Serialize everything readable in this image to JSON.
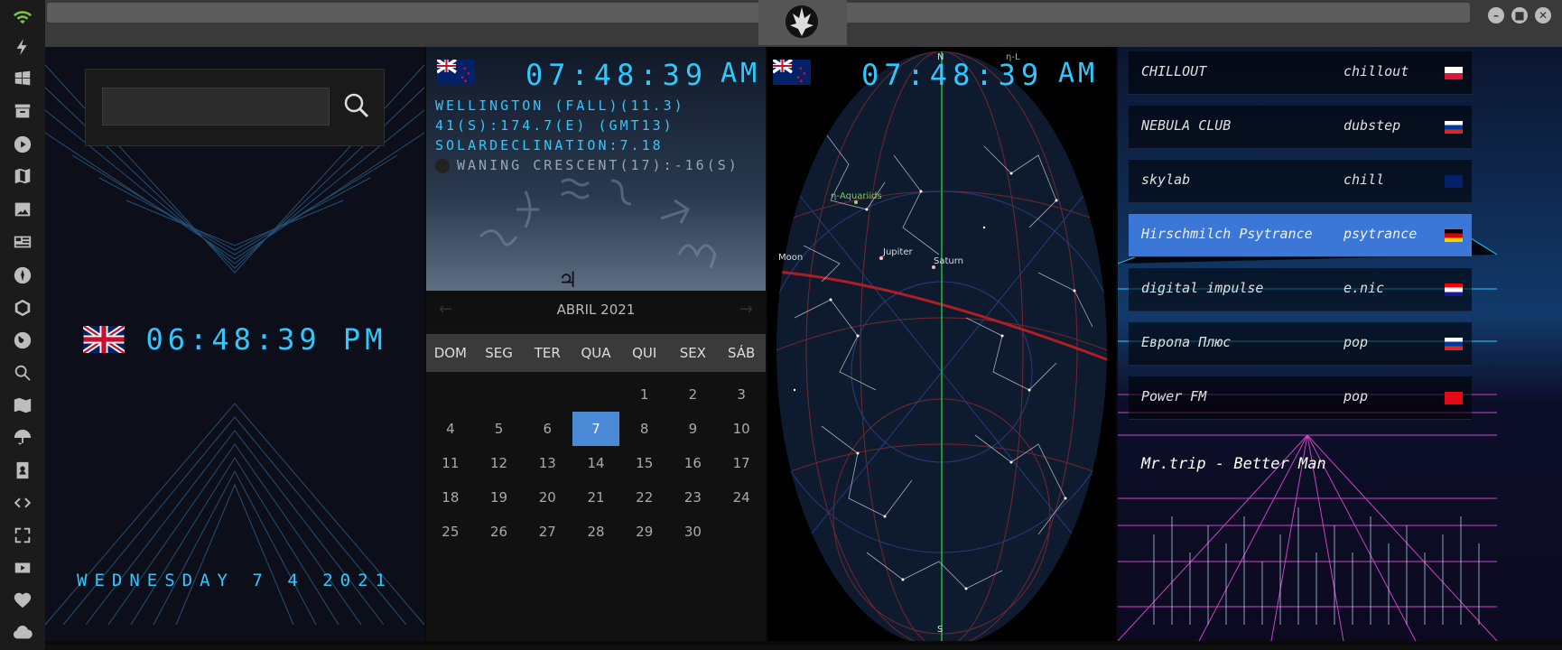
{
  "sidebar": {
    "icons": [
      "wifi-icon",
      "lightning-icon",
      "windows-icon",
      "archive-icon",
      "play-icon",
      "map-book-icon",
      "image-icon",
      "news-icon",
      "rebel-icon",
      "hexagon-icon",
      "globe-icon",
      "search-icon",
      "map-icon",
      "umbrella-icon",
      "contacts-icon",
      "code-icon",
      "fullscreen-icon",
      "youtube-icon",
      "heart-icon",
      "cloud-icon"
    ]
  },
  "window": {
    "buttons": [
      "–",
      "■",
      "✕"
    ]
  },
  "panel_local": {
    "search": {
      "placeholder": ""
    },
    "time": "06:48:39 PM",
    "date": "WEDNESDAY 7 4 2021"
  },
  "panel_wellington": {
    "time": "07:48:39",
    "ampm": "AM",
    "line1": "WELLINGTON (FALL)(11.3)",
    "line2": "41(S):174.7(E) (GMT13)",
    "line3": "SOLARDECLINATION:7.18",
    "moon": "WANING CRESCENT(17):-16(S)",
    "jupiter_symbol": "♃",
    "neptune_symbol": "♆",
    "calendar": {
      "month": "ABRIL 2021",
      "prev": "←",
      "next": "→",
      "weekdays": [
        "DOM",
        "SEG",
        "TER",
        "QUA",
        "QUI",
        "SEX",
        "SÁB"
      ],
      "days": [
        "",
        "",
        "",
        "",
        "1",
        "2",
        "3",
        "4",
        "5",
        "6",
        "7",
        "8",
        "9",
        "10",
        "11",
        "12",
        "13",
        "14",
        "15",
        "16",
        "17",
        "18",
        "19",
        "20",
        "21",
        "22",
        "23",
        "24",
        "25",
        "26",
        "27",
        "28",
        "29",
        "30",
        ""
      ],
      "selected": "7"
    }
  },
  "panel_sky": {
    "time": "07:48:39",
    "ampm": "AM",
    "labels": {
      "north": "N",
      "south": "S",
      "shower": "η-Aquariids",
      "moon": "Moon",
      "jupiter": "Jupiter",
      "saturn": "Saturn",
      "top_shower": "η-L"
    }
  },
  "panel_radio": {
    "stations": [
      {
        "name": "CHILLOUT",
        "genre": "chillout",
        "flag": "pl"
      },
      {
        "name": "NEBULA CLUB",
        "genre": "dubstep",
        "flag": "ru"
      },
      {
        "name": "skylab",
        "genre": "chill",
        "flag": "uk"
      },
      {
        "name": "Hirschmilch Psytrance",
        "genre": "psytrance",
        "flag": "de"
      },
      {
        "name": "digital impulse",
        "genre": "e.nic",
        "flag": "hr"
      },
      {
        "name": "Европа Плюс",
        "genre": "pop",
        "flag": "ru"
      },
      {
        "name": "Power FM",
        "genre": "pop",
        "flag": "tr"
      }
    ],
    "active_index": 3,
    "now_playing": "Mr.trip - Better Man"
  }
}
